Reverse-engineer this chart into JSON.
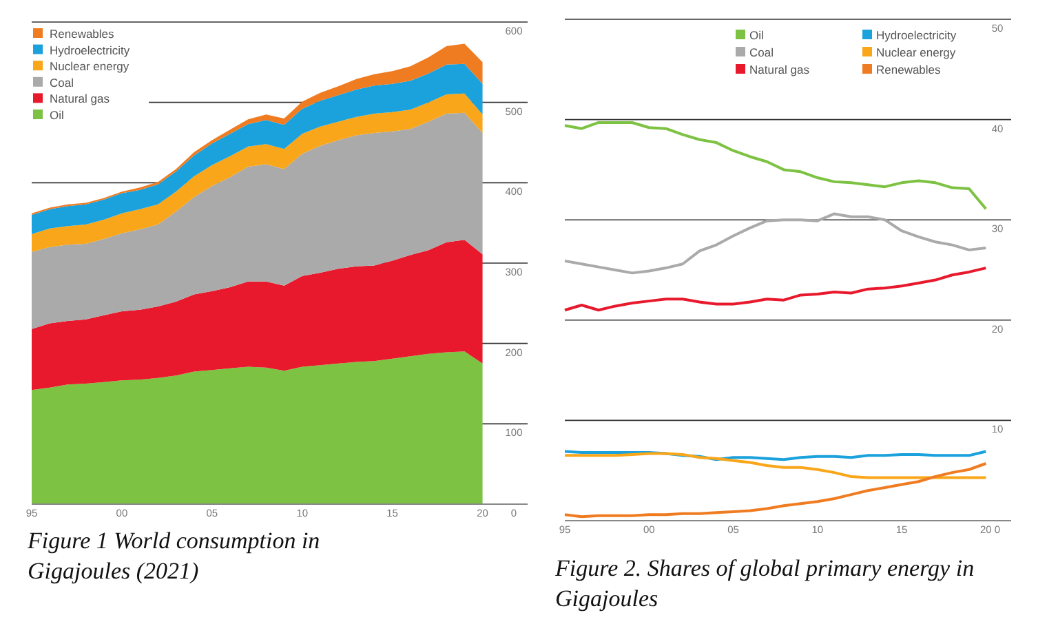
{
  "chart_data": [
    {
      "type": "area",
      "stacked": true,
      "title": "Figure      1      World consumption in Gigajoules (2021)",
      "x": [
        1995,
        1996,
        1997,
        1998,
        1999,
        2000,
        2001,
        2002,
        2003,
        2004,
        2005,
        2006,
        2007,
        2008,
        2009,
        2010,
        2011,
        2012,
        2013,
        2014,
        2015,
        2016,
        2017,
        2018,
        2019,
        2020
      ],
      "xlim": [
        1995,
        2022.5
      ],
      "xticks": [
        {
          "value": 1995,
          "label": "95"
        },
        {
          "value": 2000,
          "label": "00"
        },
        {
          "value": 2005,
          "label": "05"
        },
        {
          "value": 2010,
          "label": "10"
        },
        {
          "value": 2015,
          "label": "15"
        },
        {
          "value": 2020,
          "label": "20"
        }
      ],
      "ylim": [
        0,
        600
      ],
      "yticks": [
        0,
        100,
        200,
        300,
        400,
        500,
        600
      ],
      "grid": "y",
      "legend": "top left",
      "series": [
        {
          "name": "Oil",
          "color": "#7dc242",
          "values": [
            142,
            145,
            149,
            150,
            152,
            154,
            155,
            157,
            160,
            165,
            167,
            169,
            171,
            170,
            166,
            171,
            173,
            175,
            177,
            178,
            181,
            184,
            187,
            189,
            190,
            175
          ]
        },
        {
          "name": "Natural gas",
          "color": "#e8192c",
          "values": [
            76,
            80,
            79,
            80,
            83,
            86,
            87,
            89,
            92,
            96,
            98,
            101,
            106,
            107,
            106,
            113,
            115,
            118,
            119,
            119,
            122,
            126,
            129,
            137,
            139,
            136
          ]
        },
        {
          "name": "Coal",
          "color": "#aaaaaa",
          "values": [
            96,
            95,
            95,
            94,
            95,
            97,
            100,
            102,
            112,
            121,
            131,
            137,
            143,
            146,
            145,
            152,
            158,
            160,
            163,
            165,
            161,
            157,
            160,
            160,
            158,
            151
          ]
        },
        {
          "name": "Nuclear energy",
          "color": "#f9a61a",
          "values": [
            22,
            23,
            23,
            24,
            24,
            25,
            25,
            25,
            25,
            26,
            26,
            26,
            25,
            25,
            25,
            25,
            24,
            23,
            23,
            24,
            24,
            24,
            24,
            24,
            24,
            23
          ]
        },
        {
          "name": "Hydroelectricity",
          "color": "#1ba1dc",
          "values": [
            24,
            24,
            25,
            25,
            25,
            25,
            24,
            25,
            25,
            26,
            27,
            28,
            28,
            30,
            30,
            31,
            32,
            33,
            34,
            35,
            35,
            36,
            36,
            37,
            37,
            38
          ]
        },
        {
          "name": "Renewables",
          "color": "#f07c22",
          "values": [
            2,
            2,
            2,
            2,
            2,
            2,
            3,
            3,
            3,
            4,
            4,
            5,
            6,
            7,
            8,
            9,
            10,
            11,
            13,
            14,
            16,
            18,
            20,
            23,
            25,
            27
          ]
        }
      ]
    },
    {
      "type": "line",
      "title": "Figure 2.  Shares of global primary energy in Gigajoules",
      "x": [
        1995,
        1996,
        1997,
        1998,
        1999,
        2000,
        2001,
        2002,
        2003,
        2004,
        2005,
        2006,
        2007,
        2008,
        2009,
        2010,
        2011,
        2012,
        2013,
        2014,
        2015,
        2016,
        2017,
        2018,
        2019,
        2020
      ],
      "xlim": [
        1995,
        2021.5
      ],
      "xticks": [
        {
          "value": 1995,
          "label": "95"
        },
        {
          "value": 2000,
          "label": "00"
        },
        {
          "value": 2005,
          "label": "05"
        },
        {
          "value": 2010,
          "label": "10"
        },
        {
          "value": 2015,
          "label": "15"
        },
        {
          "value": 2020,
          "label": "20"
        }
      ],
      "ylim": [
        0,
        50
      ],
      "yticks": [
        0,
        10,
        20,
        30,
        40,
        50
      ],
      "grid": "y",
      "legend": "top right",
      "marker": "none",
      "series": [
        {
          "name": "Oil",
          "color": "#7dc242",
          "values": [
            39.4,
            39.1,
            39.7,
            39.7,
            39.7,
            39.2,
            39.1,
            38.5,
            38.0,
            37.7,
            36.9,
            36.3,
            35.8,
            35.0,
            34.8,
            34.2,
            33.8,
            33.7,
            33.5,
            33.3,
            33.7,
            33.9,
            33.7,
            33.2,
            33.1,
            31.1
          ]
        },
        {
          "name": "Coal",
          "color": "#aaaaaa",
          "values": [
            25.9,
            25.6,
            25.3,
            25.0,
            24.7,
            24.9,
            25.2,
            25.6,
            26.9,
            27.5,
            28.4,
            29.2,
            29.9,
            30.0,
            30.0,
            29.9,
            30.6,
            30.3,
            30.3,
            30.0,
            28.9,
            28.3,
            27.8,
            27.5,
            27.0,
            27.2
          ]
        },
        {
          "name": "Natural gas",
          "color": "#e8192c",
          "values": [
            21.0,
            21.5,
            21.0,
            21.4,
            21.7,
            21.9,
            22.1,
            22.1,
            21.8,
            21.6,
            21.6,
            21.8,
            22.1,
            22.0,
            22.5,
            22.6,
            22.8,
            22.7,
            23.1,
            23.2,
            23.4,
            23.7,
            24.0,
            24.5,
            24.8,
            25.2
          ]
        },
        {
          "name": "Hydroelectricity",
          "color": "#1ba1dc",
          "values": [
            6.9,
            6.8,
            6.8,
            6.8,
            6.8,
            6.8,
            6.7,
            6.5,
            6.4,
            6.1,
            6.3,
            6.3,
            6.2,
            6.1,
            6.3,
            6.4,
            6.4,
            6.3,
            6.5,
            6.5,
            6.6,
            6.6,
            6.5,
            6.5,
            6.5,
            6.9
          ]
        },
        {
          "name": "Nuclear energy",
          "color": "#f9a61a",
          "values": [
            6.5,
            6.5,
            6.5,
            6.5,
            6.6,
            6.7,
            6.7,
            6.6,
            6.3,
            6.2,
            6.0,
            5.8,
            5.5,
            5.3,
            5.3,
            5.1,
            4.8,
            4.4,
            4.3,
            4.3,
            4.3,
            4.3,
            4.3,
            4.3,
            4.3,
            4.3
          ]
        },
        {
          "name": "Renewables",
          "color": "#f07c22",
          "values": [
            0.6,
            0.4,
            0.5,
            0.5,
            0.5,
            0.6,
            0.6,
            0.7,
            0.7,
            0.8,
            0.9,
            1.0,
            1.2,
            1.5,
            1.7,
            1.9,
            2.2,
            2.6,
            3.0,
            3.3,
            3.6,
            3.9,
            4.4,
            4.8,
            5.1,
            5.7
          ]
        }
      ]
    }
  ]
}
